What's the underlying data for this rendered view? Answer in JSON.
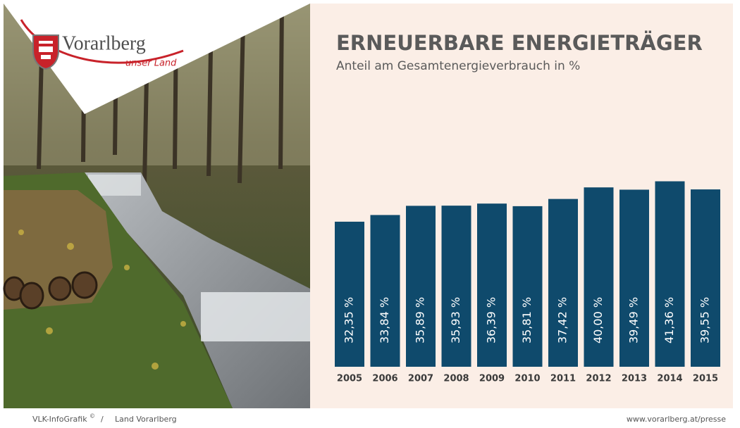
{
  "logo": {
    "name": "Vorarlberg",
    "tagline": "unser Land"
  },
  "chart_data": {
    "type": "bar",
    "title": "ERNEUERBARE ENERGIETRÄGER",
    "subtitle": "Anteil am Gesamtenergieverbrauch in %",
    "categories": [
      "2005",
      "2006",
      "2007",
      "2008",
      "2009",
      "2010",
      "2011",
      "2012",
      "2013",
      "2014",
      "2015"
    ],
    "values": [
      32.35,
      33.84,
      35.89,
      35.93,
      36.39,
      35.81,
      37.42,
      40.0,
      39.49,
      41.36,
      39.55
    ],
    "value_labels": [
      "32,35 %",
      "33,84 %",
      "35,89 %",
      "35,93 %",
      "36,39 %",
      "35,81 %",
      "37,42 %",
      "40,00 %",
      "39,49 %",
      "41,36 %",
      "39,55 %"
    ],
    "color": "#0f4a6c"
  },
  "footer": {
    "source": "VLK-InfoGrafik",
    "copyright": "©",
    "separator": "/",
    "publisher": "Land Vorarlberg",
    "url": "www.vorarlberg.at/presse"
  }
}
